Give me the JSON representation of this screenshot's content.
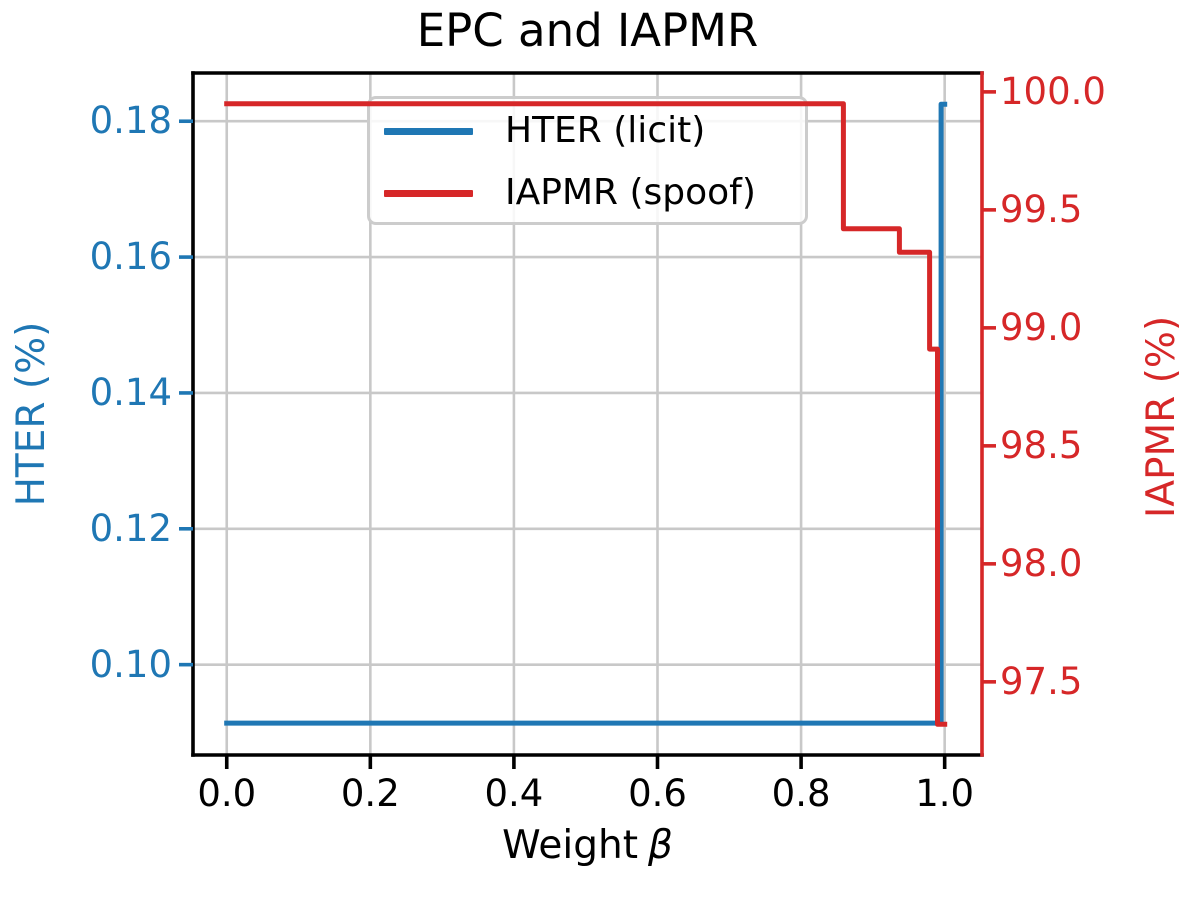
{
  "figure": {
    "background": "#ffffff"
  },
  "chart_data": {
    "type": "line",
    "title": "EPC and IAPMR",
    "xlabel": "Weight β",
    "xlabel_prefix": "Weight",
    "xlabel_symbol": "β",
    "ylabel_left": "HTER (%)",
    "ylabel_right": "IAPMR (%)",
    "xlim": [
      -0.047,
      1.052
    ],
    "ylim_left": [
      0.0867,
      0.1871
    ],
    "ylim_right": [
      97.19,
      100.08
    ],
    "grid": true,
    "x_ticks": {
      "values": [
        0.0,
        0.2,
        0.4,
        0.6,
        0.8,
        1.0
      ],
      "labels": [
        "0.0",
        "0.2",
        "0.4",
        "0.6",
        "0.8",
        "1.0"
      ]
    },
    "y_ticks_left": {
      "values": [
        0.1,
        0.12,
        0.14,
        0.16,
        0.18
      ],
      "labels": [
        "0.10",
        "0.12",
        "0.14",
        "0.16",
        "0.18"
      ]
    },
    "y_ticks_right": {
      "values": [
        97.5,
        98.0,
        98.5,
        99.0,
        99.5,
        100.0
      ],
      "labels": [
        "97.5",
        "98.0",
        "98.5",
        "99.0",
        "99.5",
        "100.0"
      ]
    },
    "legend": {
      "position": "upper center-left",
      "entries": [
        {
          "label": "HTER (licit)",
          "color": "#1f77b4"
        },
        {
          "label": "IAPMR (spoof)",
          "color": "#d62728"
        }
      ]
    },
    "series": [
      {
        "name": "HTER (licit)",
        "axis": "left",
        "color": "#1f77b4",
        "points": [
          [
            0.0,
            0.0914
          ],
          [
            0.995,
            0.0914
          ],
          [
            0.995,
            0.1825
          ],
          [
            1.0,
            0.1825
          ]
        ]
      },
      {
        "name": "IAPMR (spoof)",
        "axis": "right",
        "color": "#d62728",
        "points": [
          [
            0.0,
            99.95
          ],
          [
            0.859,
            99.95
          ],
          [
            0.859,
            99.42
          ],
          [
            0.937,
            99.42
          ],
          [
            0.937,
            99.32
          ],
          [
            0.979,
            99.32
          ],
          [
            0.979,
            98.91
          ],
          [
            0.99,
            98.91
          ],
          [
            0.99,
            97.32
          ],
          [
            1.0,
            97.32
          ]
        ]
      }
    ],
    "colors": {
      "grid": "#c8c8c8",
      "spine": "#000000",
      "right_spine": "#d62728",
      "left_ticks": "#1f77b4",
      "right_ticks": "#d62728",
      "x_ticks": "#000000",
      "legend_border": "#cccccc"
    }
  }
}
